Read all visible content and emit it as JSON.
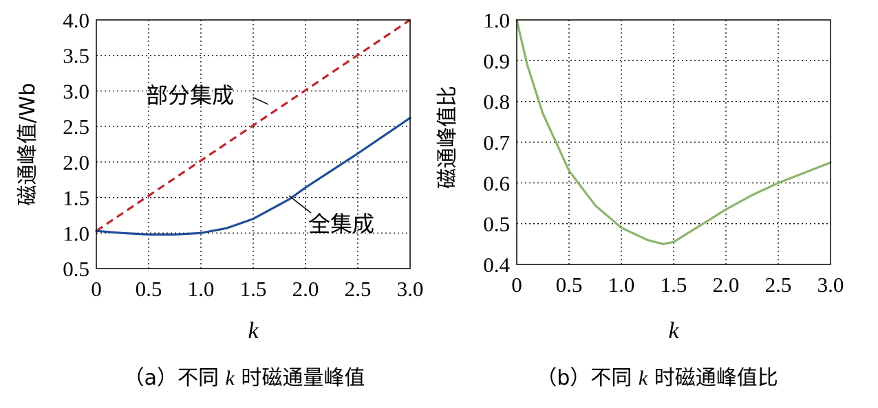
{
  "chart_data": [
    {
      "type": "line",
      "title": "",
      "xlabel": "k",
      "ylabel": "磁通峰值/Wb",
      "xlim": [
        0,
        3.0
      ],
      "ylim": [
        0.5,
        4.0
      ],
      "xticks": [
        "0",
        "0.5",
        "1.0",
        "1.5",
        "2.0",
        "2.5",
        "3.0"
      ],
      "yticks": [
        "0.5",
        "1.0",
        "1.5",
        "2.0",
        "2.5",
        "3.0",
        "3.5",
        "4.0"
      ],
      "grid": true,
      "caption": {
        "prefix": "（a）不同 ",
        "k": "k",
        "suffix": " 时磁通量峰值"
      },
      "series": [
        {
          "name": "部分集成",
          "color": "#c0262d",
          "style": "dashed",
          "x": [
            0,
            3.0
          ],
          "y": [
            1.03,
            4.0
          ]
        },
        {
          "name": "全集成",
          "color": "#1f4e96",
          "style": "solid",
          "x": [
            0,
            0.25,
            0.5,
            0.75,
            1.0,
            1.25,
            1.5,
            1.75,
            1.85,
            2.0,
            2.25,
            2.5,
            2.75,
            3.0
          ],
          "y": [
            1.03,
            1.0,
            0.98,
            0.98,
            1.0,
            1.07,
            1.2,
            1.4,
            1.48,
            1.64,
            1.88,
            2.12,
            2.37,
            2.62
          ]
        }
      ],
      "annotations": [
        {
          "text": "部分集成",
          "series": "部分集成",
          "at_x": 1.55,
          "at_y": 2.6
        },
        {
          "text": "全集成",
          "series": "全集成",
          "at_x": 1.85,
          "at_y": 1.48
        }
      ]
    },
    {
      "type": "line",
      "title": "",
      "xlabel": "k",
      "ylabel": "磁通峰值比",
      "xlim": [
        0,
        3.0
      ],
      "ylim": [
        0.4,
        1.0
      ],
      "xticks": [
        "0",
        "0.5",
        "1.0",
        "1.5",
        "2.0",
        "2.5",
        "3.0"
      ],
      "yticks": [
        "0.4",
        "0.5",
        "0.6",
        "0.7",
        "0.8",
        "0.9",
        "1.0"
      ],
      "grid": true,
      "caption": {
        "prefix": "（b）不同 ",
        "k": "k",
        "suffix": " 时磁通峰值比"
      },
      "series": [
        {
          "name": "磁通峰值比",
          "color": "#8db46b",
          "style": "solid",
          "x": [
            0,
            0.1,
            0.25,
            0.5,
            0.75,
            1.0,
            1.25,
            1.4,
            1.5,
            1.75,
            2.0,
            2.25,
            2.5,
            2.75,
            3.0
          ],
          "y": [
            1.0,
            0.89,
            0.77,
            0.63,
            0.545,
            0.49,
            0.46,
            0.45,
            0.455,
            0.495,
            0.535,
            0.57,
            0.6,
            0.625,
            0.65
          ]
        }
      ]
    }
  ]
}
